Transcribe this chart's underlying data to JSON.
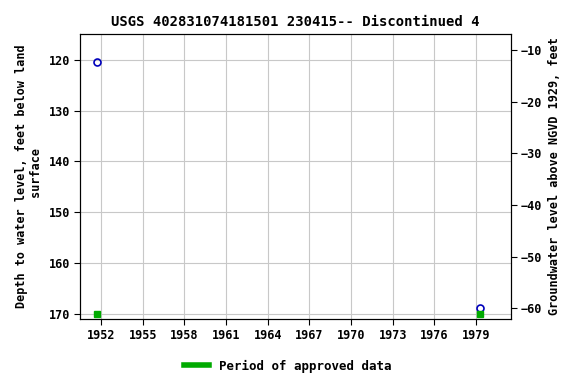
{
  "title": "USGS 402831074181501 230415-- Discontinued 4",
  "ylabel_left": "Depth to water level, feet below land\n surface",
  "ylabel_right": "Groundwater level above NGVD 1929, feet",
  "xlim": [
    1950.5,
    1981.5
  ],
  "ylim_left": [
    171,
    115
  ],
  "ylim_right": [
    -62,
    -7
  ],
  "xticks": [
    1952,
    1955,
    1958,
    1961,
    1964,
    1967,
    1970,
    1973,
    1976,
    1979
  ],
  "yticks_left": [
    120,
    130,
    140,
    150,
    160,
    170
  ],
  "yticks_right": [
    -10,
    -20,
    -30,
    -40,
    -50,
    -60
  ],
  "point1_x": 1951.7,
  "point1_y": 120.5,
  "point2_x": 1979.3,
  "point2_y": 168.8,
  "green_x1": 1951.7,
  "green_x2": 1979.3,
  "point_color": "#0000bb",
  "bar_color": "#00aa00",
  "grid_color": "#c8c8c8",
  "bg_color": "#ffffff",
  "title_fontsize": 10,
  "axis_label_fontsize": 8.5,
  "tick_fontsize": 8.5,
  "legend_fontsize": 9
}
